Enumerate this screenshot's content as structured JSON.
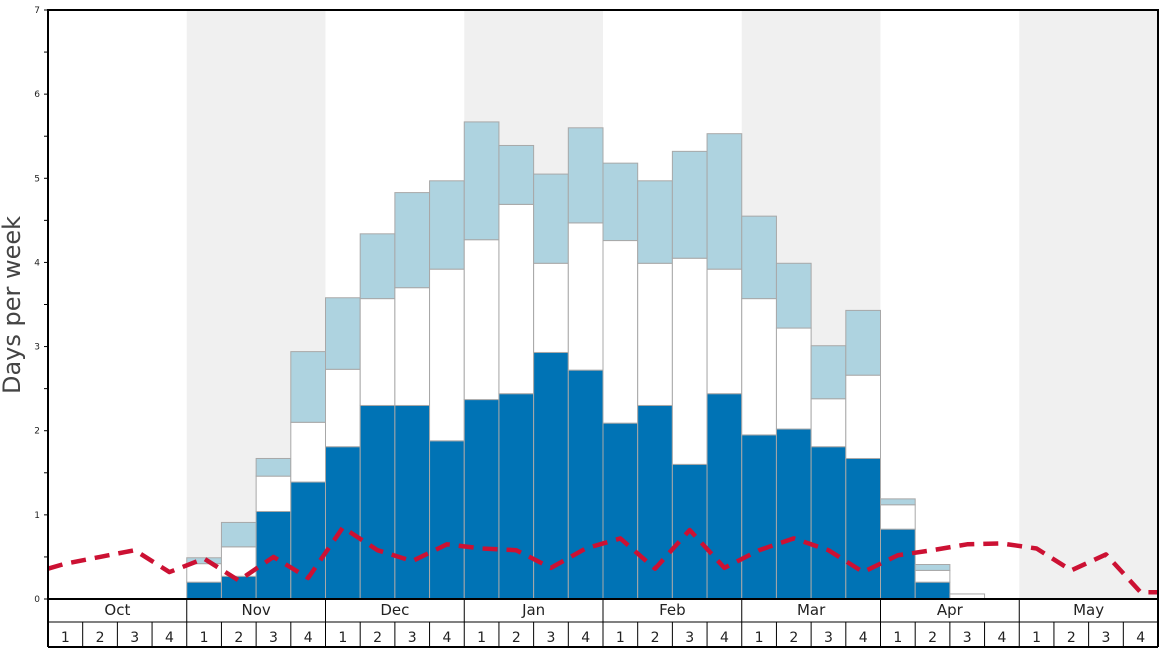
{
  "chart_data": {
    "type": "bar",
    "stacked": true,
    "title": "",
    "xlabel": "",
    "ylabel": "Days per week",
    "ylim": [
      0,
      7
    ],
    "y_ticks": [
      "0",
      "1",
      "2",
      "3",
      "4",
      "5",
      "6",
      "7"
    ],
    "months": [
      {
        "label": "Oct",
        "shaded": false
      },
      {
        "label": "Nov",
        "shaded": true
      },
      {
        "label": "Dec",
        "shaded": false
      },
      {
        "label": "Jan",
        "shaded": true
      },
      {
        "label": "Feb",
        "shaded": false
      },
      {
        "label": "Mar",
        "shaded": true
      },
      {
        "label": "Apr",
        "shaded": false
      },
      {
        "label": "May",
        "shaded": true
      }
    ],
    "week_labels": [
      "1",
      "2",
      "3",
      "4"
    ],
    "colors": {
      "dark": "#0073b5",
      "middle": "#ffffff",
      "light": "#aed3e0",
      "bar_stroke": "#a8a8a8",
      "line": "#cc1133",
      "shade": "#f0f0f0"
    },
    "series": [
      {
        "values": [
          0,
          0,
          0,
          0,
          0.2,
          0.27,
          1.04,
          1.39,
          1.81,
          2.3,
          2.3,
          1.88,
          2.37,
          2.44,
          2.93,
          2.72,
          2.09,
          2.3,
          1.6,
          2.44,
          1.95,
          2.02,
          1.81,
          1.67,
          0.83,
          0.2,
          0,
          0,
          0,
          0,
          0,
          0
        ]
      },
      {
        "values": [
          0,
          0,
          0,
          0,
          0.22,
          0.35,
          0.42,
          0.71,
          0.92,
          1.27,
          1.4,
          2.04,
          1.9,
          2.25,
          1.06,
          1.75,
          2.17,
          1.69,
          2.45,
          1.48,
          1.62,
          1.2,
          0.57,
          0.99,
          0.29,
          0.14,
          0.06,
          0,
          0,
          0,
          0,
          0
        ]
      },
      {
        "values": [
          0,
          0,
          0,
          0,
          0.07,
          0.29,
          0.21,
          0.84,
          0.85,
          0.77,
          1.13,
          1.05,
          1.4,
          0.7,
          1.06,
          1.13,
          0.92,
          0.98,
          1.27,
          1.61,
          0.98,
          0.77,
          0.63,
          0.77,
          0.07,
          0.07,
          0,
          0,
          0,
          0,
          0,
          0
        ]
      }
    ],
    "line": {
      "style": "dashed",
      "values": [
        0.42,
        0.5,
        0.58,
        0.32,
        0.48,
        0.22,
        0.5,
        0.25,
        0.85,
        0.58,
        0.45,
        0.65,
        0.6,
        0.58,
        0.37,
        0.6,
        0.72,
        0.36,
        0.82,
        0.37,
        0.58,
        0.72,
        0.58,
        0.32,
        0.52,
        0.58,
        0.65,
        0.66,
        0.6,
        0.34,
        0.53,
        0.08
      ]
    },
    "grid": false,
    "legend": "none"
  }
}
